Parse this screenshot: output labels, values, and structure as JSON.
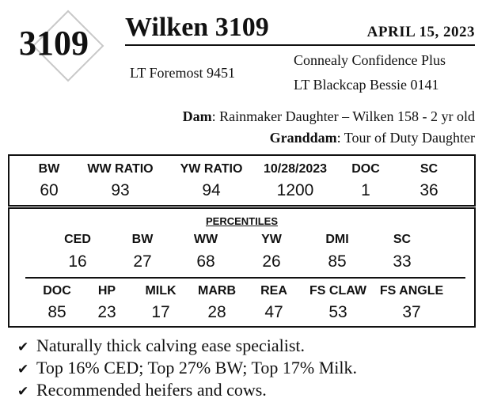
{
  "lot_number": "3109",
  "bull_name": "Wilken 3109",
  "sale_date": "APRIL 15, 2023",
  "pedigree": {
    "sire": "LT Foremost 9451",
    "sire_sire": "Connealy Confidence Plus",
    "sire_dam": "LT Blackcap Bessie 0141",
    "dam_label": "Dam",
    "dam_text": ": Rainmaker Daughter – Wilken 158 - 2 yr old",
    "granddam_label": "Granddam",
    "granddam_text": ": Tour of Duty Daughter"
  },
  "performance": {
    "headers": [
      "BW",
      "WW RATIO",
      "YW RATIO",
      "10/28/2023",
      "DOC",
      "SC"
    ],
    "values": [
      "60",
      "93",
      "94",
      "1200",
      "1",
      "36"
    ]
  },
  "percentiles": {
    "title": "PERCENTILES",
    "row1_headers": [
      "CED",
      "BW",
      "WW",
      "YW",
      "DMI",
      "SC"
    ],
    "row1_values": [
      "16",
      "27",
      "68",
      "26",
      "85",
      "33"
    ],
    "row2_headers": [
      "DOC",
      "HP",
      "MILK",
      "MARB",
      "REA",
      "FS CLAW",
      "FS ANGLE"
    ],
    "row2_values": [
      "85",
      "23",
      "17",
      "28",
      "47",
      "53",
      "37"
    ]
  },
  "highlights": [
    "Naturally thick calving ease specialist.",
    "Top 16% CED; Top 27% BW; Top 17% Milk.",
    "Recommended heifers and cows."
  ],
  "icons": {
    "bullet": "checkmark-icon",
    "lot_ornament": "diamond-icon"
  }
}
